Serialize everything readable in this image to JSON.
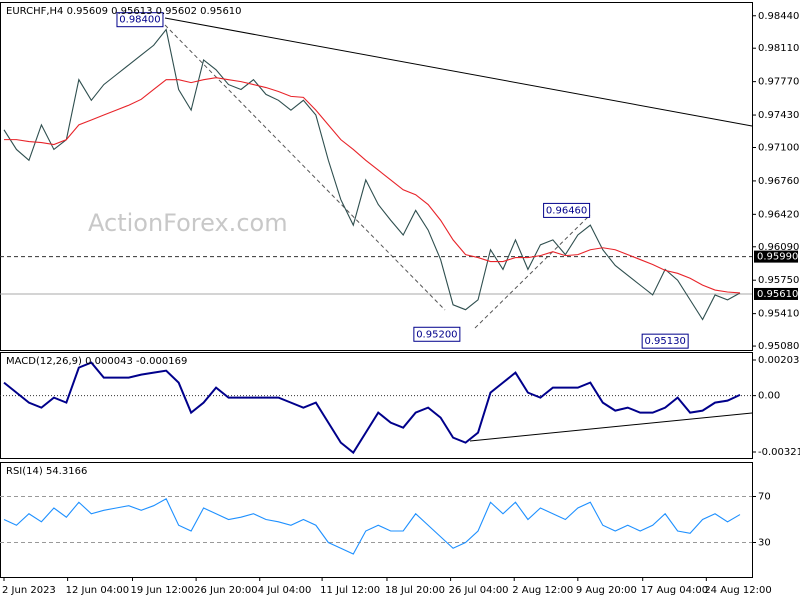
{
  "chart_data": [
    {
      "type": "line",
      "title": "EURCHF,H4 0.95609 0.95613 0.95602 0.95610",
      "watermark": "ActionForex.com",
      "x": [
        0,
        1,
        2,
        3,
        4,
        5,
        6,
        7,
        8,
        9,
        10,
        11,
        12,
        13,
        14,
        15,
        16,
        17,
        18,
        19,
        20,
        21,
        22,
        23,
        24,
        25,
        26,
        27,
        28,
        29,
        30,
        31,
        32,
        33,
        34,
        35,
        36,
        37,
        38,
        39,
        40,
        41,
        42,
        43,
        44,
        45,
        46,
        47,
        48,
        49,
        50,
        51,
        52,
        53,
        54,
        55,
        56,
        57,
        58,
        59
      ],
      "xlim": [
        0,
        59
      ],
      "series": [
        {
          "color": "#2f4f4f",
          "values": [
            0.9728,
            0.9708,
            0.9697,
            0.9733,
            0.9708,
            0.9718,
            0.9779,
            0.9758,
            0.9774,
            0.9784,
            0.9794,
            0.9804,
            0.9814,
            0.983,
            0.9769,
            0.9748,
            0.9799,
            0.9789,
            0.9774,
            0.9769,
            0.9779,
            0.9764,
            0.9758,
            0.9748,
            0.9758,
            0.9743,
            0.9697,
            0.9657,
            0.9631,
            0.9677,
            0.9652,
            0.9636,
            0.9621,
            0.9646,
            0.9626,
            0.9596,
            0.955,
            0.9545,
            0.9555,
            0.9606,
            0.9586,
            0.9616,
            0.9586,
            0.9611,
            0.9616,
            0.9601,
            0.9621,
            0.9631,
            0.9606,
            0.959,
            0.958,
            0.957,
            0.956,
            0.9586,
            0.9575,
            0.9555,
            0.9535,
            0.956,
            0.9555,
            0.9562
          ]
        },
        {
          "color": "#e8242a",
          "values": [
            0.9718,
            0.9718,
            0.9716,
            0.9715,
            0.9713,
            0.9718,
            0.9733,
            0.9738,
            0.9743,
            0.9748,
            0.9753,
            0.9759,
            0.9769,
            0.9779,
            0.9779,
            0.9776,
            0.9779,
            0.9781,
            0.9779,
            0.9777,
            0.9774,
            0.9771,
            0.9767,
            0.9762,
            0.9761,
            0.9748,
            0.9733,
            0.9718,
            0.9708,
            0.9697,
            0.9687,
            0.9677,
            0.9667,
            0.9662,
            0.9652,
            0.9636,
            0.9616,
            0.9601,
            0.9598,
            0.9594,
            0.9594,
            0.9598,
            0.9598,
            0.96,
            0.9604,
            0.96,
            0.9601,
            0.9606,
            0.9608,
            0.9606,
            0.9601,
            0.9596,
            0.9591,
            0.9585,
            0.9582,
            0.9577,
            0.957,
            0.9565,
            0.9563,
            0.9562
          ]
        }
      ],
      "ylim": [
        0.9504,
        0.9858
      ],
      "yticks": [
        {
          "value": 0.9844,
          "label": "0.98440"
        },
        {
          "value": 0.9811,
          "label": "0.98110"
        },
        {
          "value": 0.9777,
          "label": "0.97770"
        },
        {
          "value": 0.9743,
          "label": "0.97430"
        },
        {
          "value": 0.971,
          "label": "0.97100"
        },
        {
          "value": 0.9676,
          "label": "0.96760"
        },
        {
          "value": 0.9642,
          "label": "0.96420"
        },
        {
          "value": 0.9609,
          "label": "0.96090"
        },
        {
          "value": 0.9575,
          "label": "0.95750"
        },
        {
          "value": 0.9541,
          "label": "0.95410"
        },
        {
          "value": 0.9508,
          "label": "0.95080"
        }
      ],
      "levels": [
        {
          "value": 0.9599,
          "label": "0.95990",
          "style": "dashed"
        },
        {
          "value": 0.9561,
          "label": "0.95610",
          "style": "solid"
        }
      ],
      "annotations": [
        {
          "x": 10.9,
          "value": 0.984,
          "label": "0.98400"
        },
        {
          "x": 45.1,
          "value": 0.9646,
          "label": "0.96460"
        },
        {
          "x": 34.7,
          "value": 0.952,
          "label": "0.95200"
        },
        {
          "x": 53,
          "value": 0.9513,
          "label": "0.95130"
        }
      ]
    },
    {
      "type": "line",
      "title": "MACD(12,26,9) 0.000043 -0.000169",
      "x": [
        0,
        1,
        2,
        3,
        4,
        5,
        6,
        7,
        8,
        9,
        10,
        11,
        12,
        13,
        14,
        15,
        16,
        17,
        18,
        19,
        20,
        21,
        22,
        23,
        24,
        25,
        26,
        27,
        28,
        29,
        30,
        31,
        32,
        33,
        34,
        35,
        36,
        37,
        38,
        39,
        40,
        41,
        42,
        43,
        44,
        45,
        46,
        47,
        48,
        49,
        50,
        51,
        52,
        53,
        54,
        55,
        56,
        57,
        58,
        59
      ],
      "xlim": [
        0,
        59
      ],
      "series": [
        {
          "color": "#00008b",
          "values": [
            0.000741,
            0.000171,
            -0.000399,
            -0.000684,
            -0.000114,
            -0.000399,
            0.001596,
            0.001881,
            0.001026,
            0.001026,
            0.001026,
            0.001197,
            0.001311,
            0.001425,
            0.000741,
            -0.000969,
            -0.000399,
            0.000456,
            -0.000114,
            -0.000114,
            -0.000114,
            -0.000114,
            -0.000114,
            -0.000399,
            -0.000684,
            -0.000399,
            -0.001539,
            -0.002679,
            -0.00325,
            -0.002109,
            -0.000969,
            -0.001539,
            -0.001824,
            -0.000969,
            -0.000684,
            -0.001254,
            -0.002394,
            -0.002679,
            -0.002109,
            0.000171,
            0.000741,
            0.001311,
            0.000171,
            -0.000114,
            0.000456,
            0.000456,
            0.000456,
            0.000741,
            -0.000399,
            -0.000855,
            -0.000684,
            -0.000969,
            -0.000969,
            -0.000684,
            -0.000114,
            -0.000969,
            -0.000855,
            -0.000399,
            -0.000285,
            4.3e-05
          ]
        }
      ],
      "ylim": [
        -0.003556,
        0.002487
      ],
      "yticks": [
        0.002031,
        {
          "value": 0,
          "label": "0.00"
        },
        -0.003214
      ],
      "levels": [
        {
          "value": 0,
          "style": "dotted"
        }
      ]
    },
    {
      "type": "line",
      "title": "RSI(14) 54.3166",
      "x": [
        0,
        1,
        2,
        3,
        4,
        5,
        6,
        7,
        8,
        9,
        10,
        11,
        12,
        13,
        14,
        15,
        16,
        17,
        18,
        19,
        20,
        21,
        22,
        23,
        24,
        25,
        26,
        27,
        28,
        29,
        30,
        31,
        32,
        33,
        34,
        35,
        36,
        37,
        38,
        39,
        40,
        41,
        42,
        43,
        44,
        45,
        46,
        47,
        48,
        49,
        50,
        51,
        52,
        53,
        54,
        55,
        56,
        57,
        58,
        59
      ],
      "xlim": [
        0,
        59
      ],
      "series": [
        {
          "color": "#1e90ff",
          "values": [
            50,
            45,
            55,
            48,
            60,
            52,
            65,
            55,
            58,
            60,
            62,
            58,
            62,
            68,
            45,
            40,
            60,
            55,
            50,
            52,
            55,
            50,
            48,
            45,
            50,
            45,
            30,
            25,
            20,
            40,
            45,
            40,
            40,
            55,
            45,
            35,
            25,
            30,
            40,
            65,
            55,
            65,
            50,
            60,
            55,
            50,
            60,
            65,
            45,
            40,
            45,
            40,
            45,
            55,
            40,
            38,
            50,
            55,
            48,
            54.3166
          ]
        }
      ],
      "ylim": [
        0,
        100
      ],
      "yticks": [
        70,
        30
      ],
      "grid": true,
      "xticks": [
        {
          "value": 0,
          "label": "2 Jun 2023"
        },
        {
          "value": 5.1,
          "label": "12 Jun 04:00"
        },
        {
          "value": 10.3,
          "label": "19 Jun 12:00"
        },
        {
          "value": 15.4,
          "label": "26 Jun 20:00"
        },
        {
          "value": 20.5,
          "label": "4 Jul 04:00"
        },
        {
          "value": 25.5,
          "label": "11 Jul 12:00"
        },
        {
          "value": 30.7,
          "label": "18 Jul 20:00"
        },
        {
          "value": 35.8,
          "label": "26 Jul 04:00"
        },
        {
          "value": 40.9,
          "label": "2 Aug 12:00"
        },
        {
          "value": 46,
          "label": "9 Aug 20:00"
        },
        {
          "value": 51.2,
          "label": "17 Aug 04:00"
        },
        {
          "value": 56.3,
          "label": "24 Aug 12:00"
        }
      ]
    }
  ]
}
